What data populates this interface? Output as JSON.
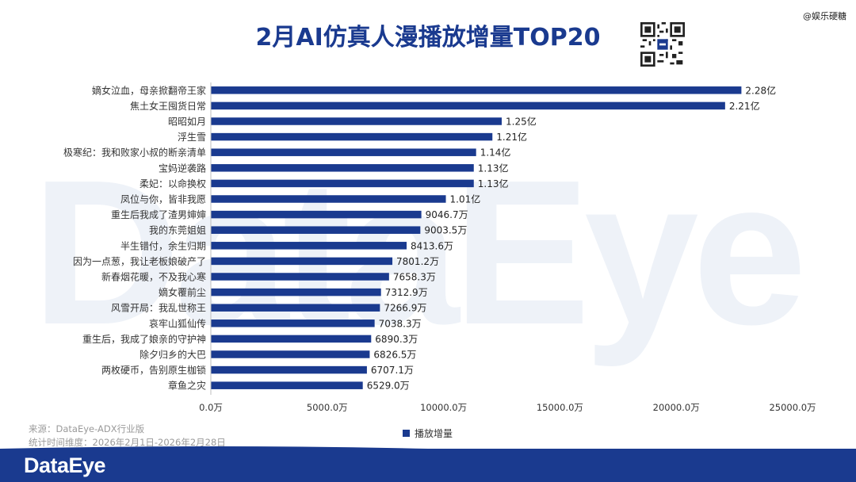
{
  "header": {
    "title": "2月AI仿真人漫播放增量TOP20",
    "weibo_handle": "@娱乐硬糖",
    "watermark": "DataEye"
  },
  "footer": {
    "source_line1": "来源：DataEye-ADX行业版",
    "source_line2": "统计时间维度：2026年2月1日-2026年2月28日",
    "brand": "DataEye"
  },
  "colors": {
    "bar": "#1a3a8f",
    "title": "#1a3a8f",
    "footer_bg": "#1a3a8f"
  },
  "chart_data": {
    "type": "bar",
    "orientation": "horizontal",
    "title": "2月AI仿真人漫播放增量TOP20",
    "categories": [
      "嫡女泣血，母亲掀翻帝王家",
      "焦土女王囤货日常",
      "昭昭如月",
      "浮生雪",
      "极寒纪：我和败家小叔的断亲清单",
      "宝妈逆袭路",
      "柔妃：以命换权",
      "凤位与你，皆非我愿",
      "重生后我成了渣男婶婶",
      "我的东莞姐姐",
      "半生错付，余生归期",
      "因为一点葱，我让老板娘破产了",
      "新春烟花暖，不及我心寒",
      "嫡女覆前尘",
      "风雪开局：我乱世称王",
      "哀牢山狐仙传",
      "重生后，我成了娘亲的守护神",
      "除夕归乡的大巴",
      "两枚硬币，告别原生枷锁",
      "章鱼之灾"
    ],
    "series": [
      {
        "name": "播放增量",
        "values": [
          22800,
          22100,
          12500,
          12100,
          11400,
          11300,
          11300,
          10100,
          9046.7,
          9003.5,
          8413.6,
          7801.2,
          7658.3,
          7312.9,
          7266.9,
          7038.3,
          6890.3,
          6826.5,
          6707.1,
          6529.0
        ]
      }
    ],
    "data_labels": [
      "2.28亿",
      "2.21亿",
      "1.25亿",
      "1.21亿",
      "1.14亿",
      "1.13亿",
      "1.13亿",
      "1.01亿",
      "9046.7万",
      "9003.5万",
      "8413.6万",
      "7801.2万",
      "7658.3万",
      "7312.9万",
      "7266.9万",
      "7038.3万",
      "6890.3万",
      "6826.5万",
      "6707.1万",
      "6529.0万"
    ],
    "x_ticks": [
      "0.0万",
      "5000.0万",
      "10000.0万",
      "15000.0万",
      "20000.0万",
      "25000.0万"
    ],
    "x_tick_values": [
      0,
      5000,
      10000,
      15000,
      20000,
      25000
    ],
    "xlim": [
      0,
      25000
    ],
    "legend": "bottom-center",
    "grid": false
  }
}
